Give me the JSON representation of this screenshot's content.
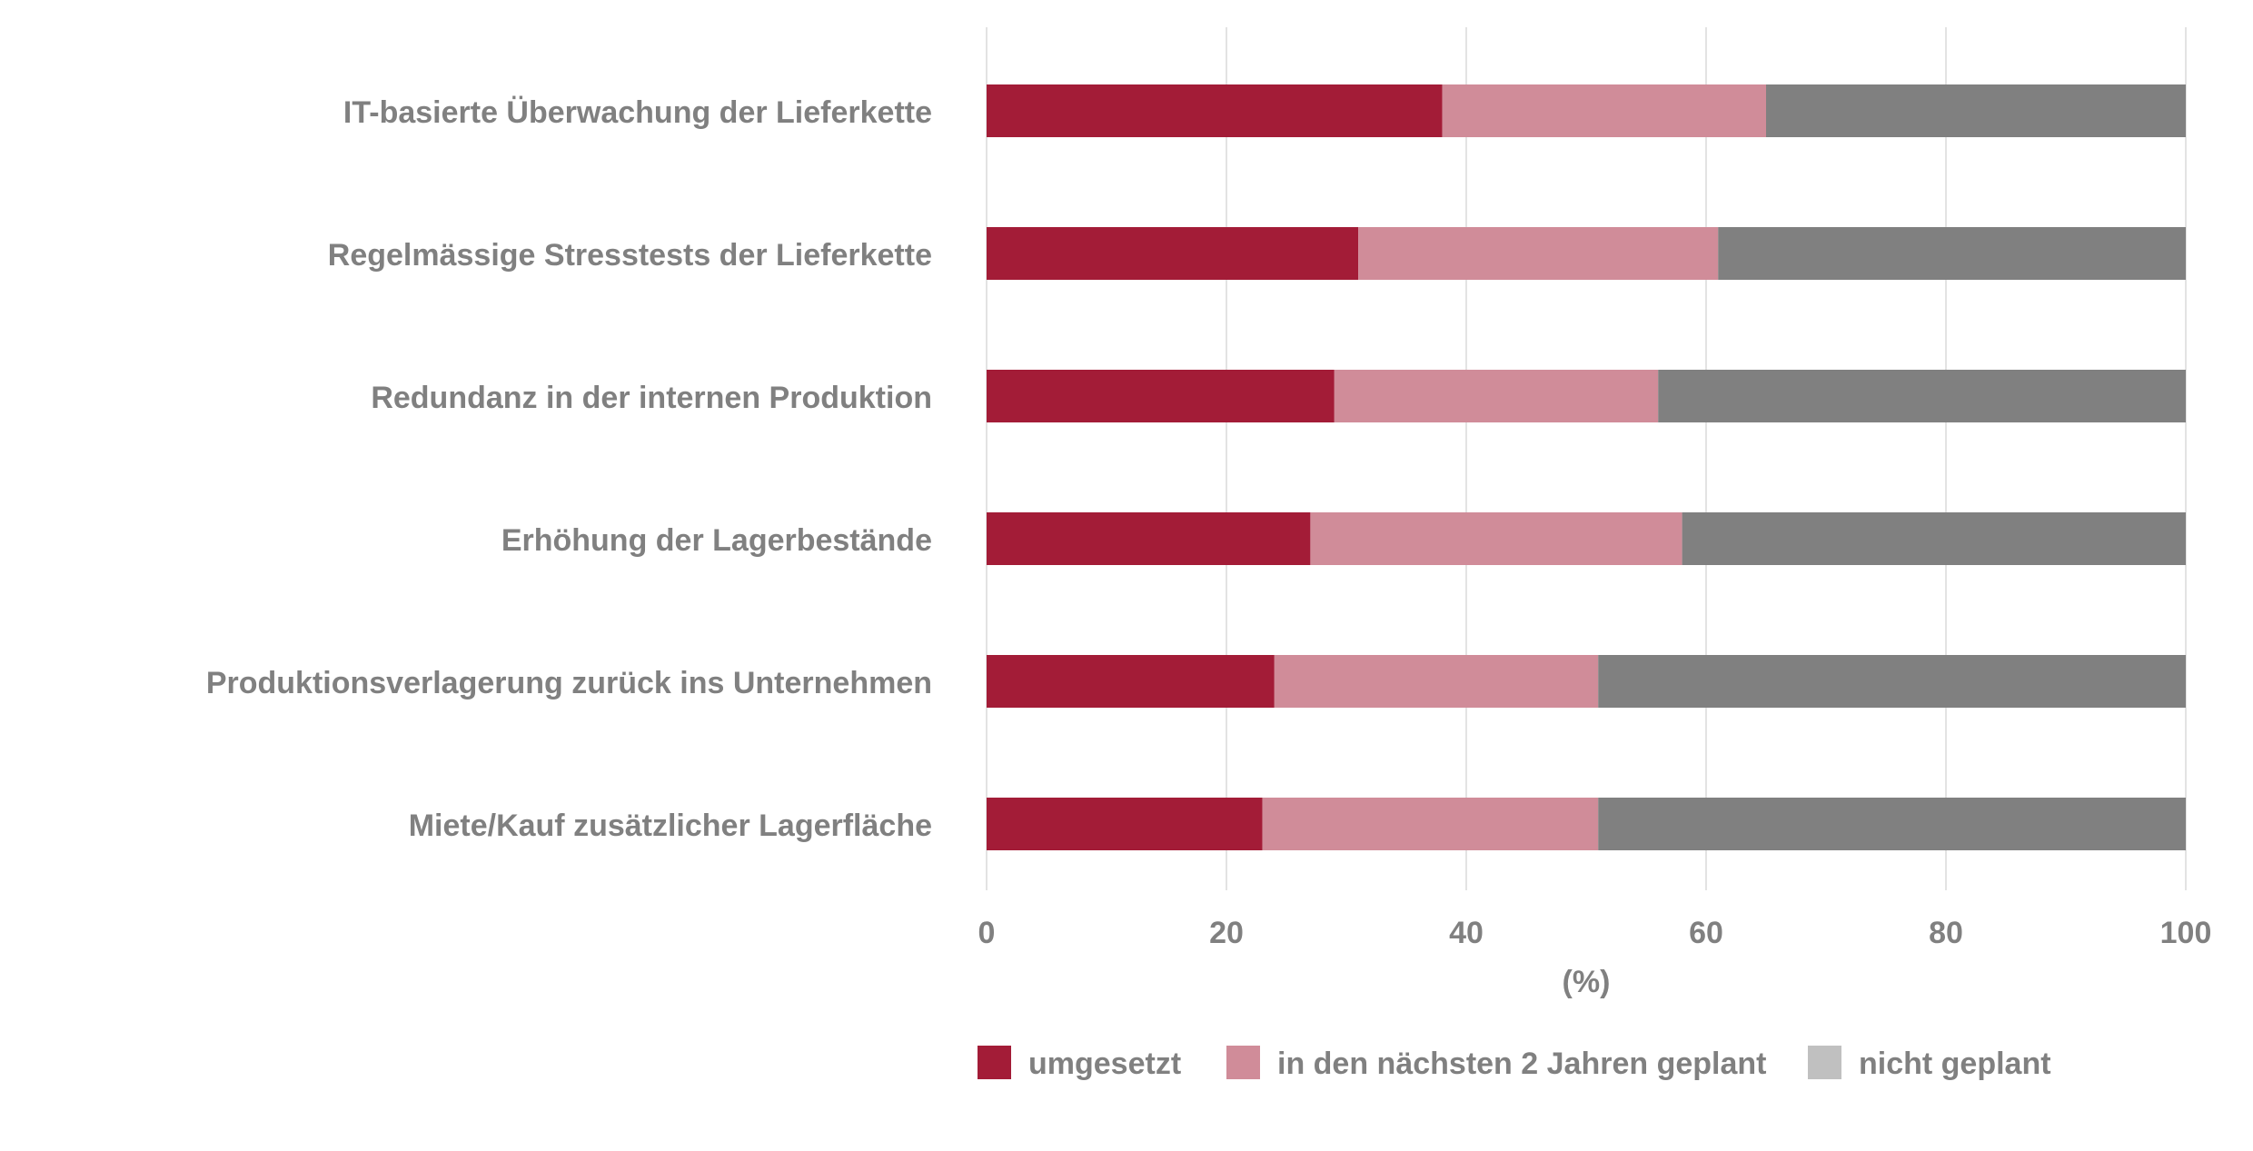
{
  "chart_data": {
    "type": "bar",
    "orientation": "horizontal",
    "stacked": true,
    "title": "",
    "xlabel": "(%)",
    "ylabel": "",
    "xlim": [
      0,
      100
    ],
    "xticks": [
      0,
      20,
      40,
      60,
      80,
      100
    ],
    "grid": true,
    "legend_position": "bottom",
    "categories": [
      "IT-basierte Überwachung der Lieferkette",
      "Regelmässige Stresstests der Lieferkette",
      "Redundanz in der internen Produktion",
      "Erhöhung der Lagerbestände",
      "Produktionsverlagerung zurück ins Unternehmen",
      "Miete/Kauf zusätzlicher Lagerfläche"
    ],
    "series": [
      {
        "name": "umgesetzt",
        "color": "#A31C37",
        "values": [
          38,
          31,
          29,
          27,
          24,
          23
        ]
      },
      {
        "name": "in den nächsten 2 Jahren geplant",
        "color": "#D08C99",
        "values": [
          27,
          30,
          27,
          31,
          27,
          28
        ]
      },
      {
        "name": "nicht geplant",
        "color": "#808080",
        "legend_color": "#C0C0C0",
        "values": [
          35,
          39,
          44,
          42,
          49,
          49
        ]
      }
    ]
  }
}
